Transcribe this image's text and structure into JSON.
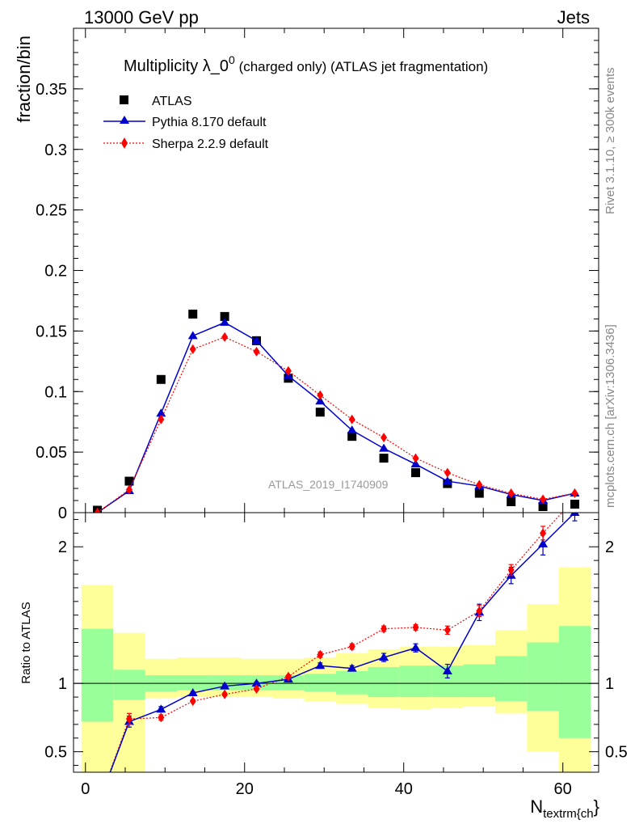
{
  "header": {
    "left": "13000 GeV pp",
    "right": "Jets"
  },
  "side": {
    "top": "Rivet 3.1.10, ≥ 300k events",
    "bottom": "mcplots.cern.ch [arXiv:1306.3436]"
  },
  "chart_data": [
    {
      "type": "scatter",
      "title": {
        "main": "Multiplicity λ_0",
        "sup": "0",
        "sub": " (charged only) (ATLAS jet fragmentation)"
      },
      "ylabel": "fraction/bin",
      "watermark": "ATLAS_2019_I1740909",
      "xlim": [
        -1.5,
        64.5
      ],
      "ylim": [
        0,
        0.4
      ],
      "y_ticks": [
        0,
        0.05,
        0.1,
        0.15,
        0.2,
        0.25,
        0.3,
        0.35
      ],
      "y_tick_labels": [
        "0",
        "0.05",
        "0.1",
        "0.15",
        "0.2",
        "0.25",
        "0.3",
        "0.35"
      ],
      "legend_position": "top-left",
      "x": [
        1.5,
        5.5,
        9.5,
        13.5,
        17.5,
        21.5,
        25.5,
        29.5,
        33.5,
        37.5,
        41.5,
        45.5,
        49.5,
        53.5,
        57.5,
        61.5
      ],
      "series": [
        {
          "name": "ATLAS",
          "color": "#000000",
          "marker": "square",
          "values": [
            0.002,
            0.026,
            0.11,
            0.164,
            0.162,
            0.142,
            0.111,
            0.083,
            0.063,
            0.045,
            0.033,
            0.024,
            0.016,
            0.009,
            0.005,
            0.007
          ]
        },
        {
          "name": "Pythia 8.170 default",
          "color": "#0000cc",
          "marker": "triangle",
          "line": "solid",
          "values": [
            0.0,
            0.018,
            0.082,
            0.146,
            0.157,
            0.142,
            0.113,
            0.092,
            0.068,
            0.053,
            0.04,
            0.026,
            0.022,
            0.015,
            0.01,
            0.016
          ]
        },
        {
          "name": "Sherpa 2.2.9 default",
          "color": "#ff0000",
          "marker": "diamond",
          "line": "dotted",
          "values": [
            0.0,
            0.019,
            0.077,
            0.135,
            0.145,
            0.133,
            0.117,
            0.097,
            0.077,
            0.062,
            0.045,
            0.033,
            0.023,
            0.016,
            0.011,
            0.016
          ]
        }
      ]
    },
    {
      "type": "line",
      "ylabel": "Ratio to ATLAS",
      "xlabel": {
        "main": "N",
        "sub": "textrm{ch",
        "tail": "}"
      },
      "xlim": [
        -1.5,
        64.5
      ],
      "ylim": [
        0.35,
        2.25
      ],
      "x_ticks": [
        0,
        20,
        40,
        60
      ],
      "x_tick_labels": [
        "0",
        "20",
        "40",
        "60"
      ],
      "y_ticks": [
        0.5,
        1,
        2
      ],
      "y_tick_labels": [
        "0.5",
        "1",
        "2"
      ],
      "reference_line": 1,
      "bands": {
        "edges": [
          -0.5,
          3.5,
          7.5,
          11.5,
          15.5,
          19.5,
          23.5,
          27.5,
          31.5,
          35.5,
          39.5,
          43.5,
          47.5,
          51.5,
          55.5,
          59.5,
          63.5
        ],
        "yellow_color": "#ffff99",
        "green_color": "#99ff99",
        "yellow_low": [
          0.2,
          0.2,
          0.89,
          0.9,
          0.9,
          0.9,
          0.89,
          0.87,
          0.85,
          0.82,
          0.81,
          0.82,
          0.83,
          0.78,
          0.5,
          0.3,
          0.3
        ],
        "yellow_high": [
          1.72,
          1.37,
          1.18,
          1.19,
          1.19,
          1.18,
          1.18,
          1.19,
          1.22,
          1.25,
          1.27,
          1.27,
          1.28,
          1.39,
          1.58,
          1.85,
          2.16
        ],
        "green_low": [
          0.72,
          0.88,
          0.94,
          0.95,
          0.95,
          0.95,
          0.95,
          0.94,
          0.92,
          0.9,
          0.9,
          0.9,
          0.9,
          0.87,
          0.8,
          0.6,
          0.3
        ],
        "green_high": [
          1.4,
          1.1,
          1.06,
          1.06,
          1.06,
          1.06,
          1.06,
          1.07,
          1.09,
          1.12,
          1.13,
          1.13,
          1.14,
          1.2,
          1.3,
          1.42,
          1.68
        ]
      },
      "x": [
        1.5,
        5.5,
        9.5,
        13.5,
        17.5,
        21.5,
        25.5,
        29.5,
        33.5,
        37.5,
        41.5,
        45.5,
        49.5,
        53.5,
        57.5,
        61.5
      ],
      "series": [
        {
          "name": "Pythia 8.170 default",
          "color": "#0000cc",
          "marker": "triangle",
          "line": "solid",
          "values": [
            0.1,
            0.72,
            0.81,
            0.93,
            0.98,
            1.0,
            1.03,
            1.13,
            1.11,
            1.19,
            1.26,
            1.09,
            1.52,
            1.79,
            2.02,
            2.25
          ],
          "errors": [
            0,
            0.04,
            0.02,
            0.01,
            0.01,
            0.01,
            0.01,
            0.02,
            0.02,
            0.03,
            0.03,
            0.05,
            0.06,
            0.06,
            0.08,
            0.06
          ]
        },
        {
          "name": "Sherpa 2.2.9 default",
          "color": "#ff0000",
          "marker": "diamond",
          "line": "dotted",
          "values": [
            0.1,
            0.74,
            0.75,
            0.87,
            0.92,
            0.96,
            1.05,
            1.21,
            1.27,
            1.4,
            1.41,
            1.39,
            1.53,
            1.83,
            2.1,
            2.35
          ],
          "errors": [
            0,
            0.04,
            0.02,
            0.01,
            0.01,
            0.01,
            0.01,
            0.02,
            0.02,
            0.02,
            0.02,
            0.03,
            0.04,
            0.04,
            0.05,
            0.06
          ]
        }
      ]
    }
  ]
}
